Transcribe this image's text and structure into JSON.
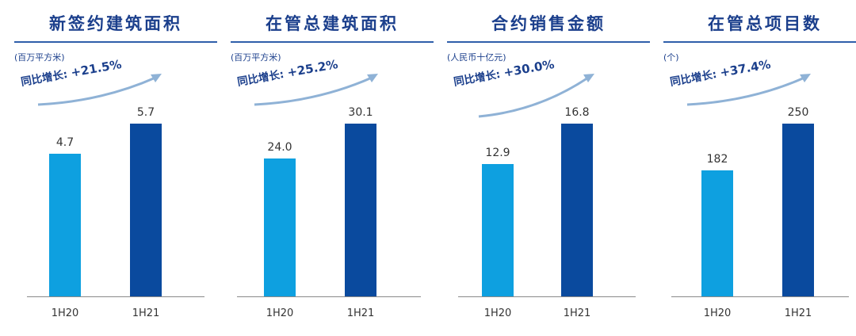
{
  "colors": {
    "bar_1h20": "#0ea0e0",
    "bar_1h21": "#0a4a9e",
    "title": "#1b3f8c",
    "arrow": "#8fb2d6"
  },
  "chart_data": [
    {
      "type": "bar",
      "title": "新签约建筑面积",
      "unit": "(百万平方米)",
      "growth_label": "同比增长:",
      "growth_value": "+21.5%",
      "categories": [
        "1H20",
        "1H21"
      ],
      "values": [
        4.7,
        5.7
      ],
      "value_labels": [
        "4.7",
        "5.7"
      ]
    },
    {
      "type": "bar",
      "title": "在管总建筑面积",
      "unit": "(百万平方米)",
      "growth_label": "同比增长:",
      "growth_value": "+25.2%",
      "categories": [
        "1H20",
        "1H21"
      ],
      "values": [
        24.0,
        30.1
      ],
      "value_labels": [
        "24.0",
        "30.1"
      ]
    },
    {
      "type": "bar",
      "title": "合约销售金额",
      "unit": "(人民币十亿元)",
      "growth_label": "同比增长:",
      "growth_value": "+30.0%",
      "categories": [
        "1H20",
        "1H21"
      ],
      "values": [
        12.9,
        16.8
      ],
      "value_labels": [
        "12.9",
        "16.8"
      ]
    },
    {
      "type": "bar",
      "title": "在管总项目数",
      "unit": "(个)",
      "growth_label": "同比增长:",
      "growth_value": "+37.4%",
      "categories": [
        "1H20",
        "1H21"
      ],
      "values": [
        182,
        250
      ],
      "value_labels": [
        "182",
        "250"
      ]
    }
  ]
}
